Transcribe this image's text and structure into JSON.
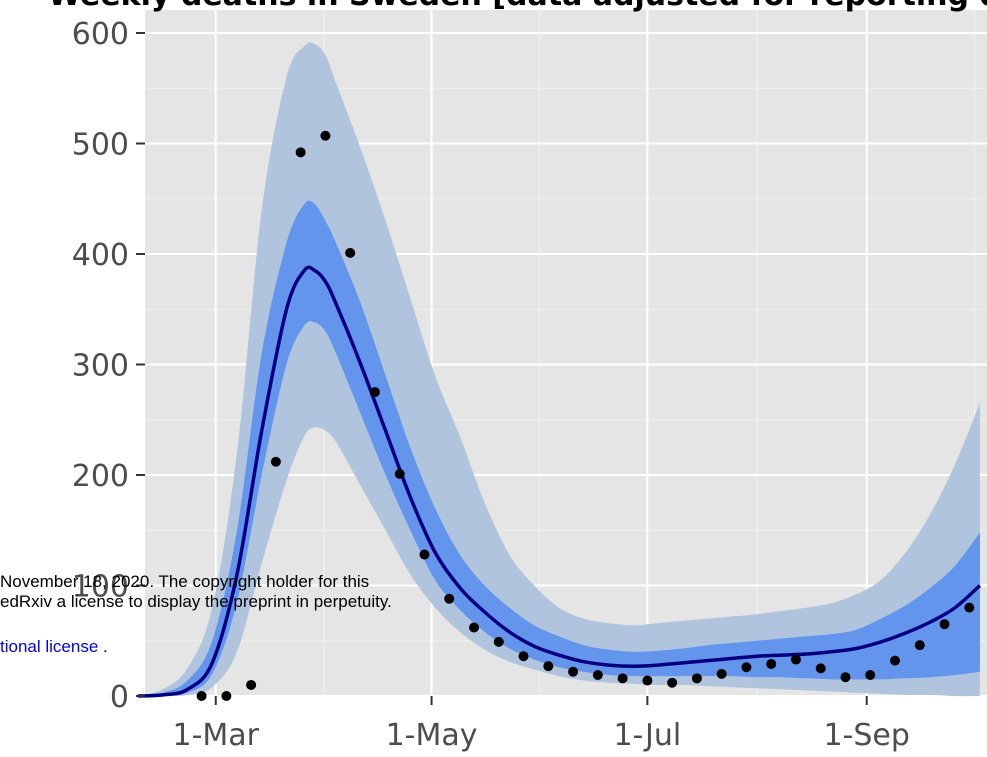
{
  "chart_data": {
    "type": "line",
    "title": "Weekly deaths in Sweden [data adjusted for reporting delay]",
    "xlabel": "",
    "ylabel": "",
    "ylim": [
      0,
      600
    ],
    "xlim": [
      "2020-02-10",
      "2020-10-05"
    ],
    "x_ticks": [
      {
        "date": "2020-03-01",
        "label": "1-Mar"
      },
      {
        "date": "2020-05-01",
        "label": "1-May"
      },
      {
        "date": "2020-07-01",
        "label": "1-Jul"
      },
      {
        "date": "2020-09-01",
        "label": "1-Sep"
      }
    ],
    "y_ticks": [
      0,
      100,
      200,
      300,
      400,
      500,
      600
    ],
    "grid": true,
    "series": [
      {
        "kind": "line",
        "color": "#000080",
        "x": [
          "2020-02-08",
          "2020-02-15",
          "2020-02-22",
          "2020-02-29",
          "2020-03-07",
          "2020-03-14",
          "2020-03-21",
          "2020-03-26",
          "2020-03-29",
          "2020-04-01",
          "2020-04-04",
          "2020-04-11",
          "2020-04-18",
          "2020-04-25",
          "2020-05-02",
          "2020-05-09",
          "2020-05-16",
          "2020-05-23",
          "2020-05-30",
          "2020-06-06",
          "2020-06-13",
          "2020-06-20",
          "2020-06-27",
          "2020-07-04",
          "2020-07-11",
          "2020-07-18",
          "2020-07-25",
          "2020-08-01",
          "2020-08-08",
          "2020-08-15",
          "2020-08-22",
          "2020-08-29",
          "2020-09-05",
          "2020-09-12",
          "2020-09-19",
          "2020-09-26",
          "2020-10-03"
        ],
        "y": [
          0,
          1,
          6,
          30,
          110,
          240,
          350,
          385,
          385,
          375,
          355,
          300,
          240,
          180,
          130,
          98,
          76,
          58,
          45,
          37,
          31,
          28,
          27,
          28,
          30,
          32,
          34,
          36,
          37,
          38,
          40,
          43,
          49,
          57,
          67,
          80,
          100
        ]
      },
      {
        "kind": "band",
        "name": "inner",
        "color": "#6495ed",
        "x": [
          "2020-02-08",
          "2020-02-15",
          "2020-02-22",
          "2020-02-29",
          "2020-03-07",
          "2020-03-14",
          "2020-03-21",
          "2020-03-26",
          "2020-03-29",
          "2020-04-01",
          "2020-04-04",
          "2020-04-11",
          "2020-04-18",
          "2020-04-25",
          "2020-05-02",
          "2020-05-09",
          "2020-05-16",
          "2020-05-23",
          "2020-05-30",
          "2020-06-06",
          "2020-06-13",
          "2020-06-20",
          "2020-06-27",
          "2020-07-04",
          "2020-07-11",
          "2020-07-18",
          "2020-07-25",
          "2020-08-01",
          "2020-08-08",
          "2020-08-15",
          "2020-08-22",
          "2020-08-29",
          "2020-09-05",
          "2020-09-12",
          "2020-09-19",
          "2020-09-26",
          "2020-10-03"
        ],
        "lower": [
          0,
          0,
          3,
          20,
          85,
          200,
          300,
          335,
          338,
          330,
          310,
          255,
          200,
          150,
          105,
          78,
          58,
          43,
          33,
          26,
          22,
          19,
          18,
          18,
          18,
          18,
          18,
          17,
          17,
          16,
          15,
          15,
          15,
          16,
          17,
          19,
          22
        ],
        "upper": [
          0,
          3,
          14,
          50,
          150,
          310,
          410,
          445,
          445,
          430,
          410,
          355,
          290,
          225,
          170,
          128,
          100,
          80,
          64,
          54,
          46,
          42,
          40,
          41,
          43,
          46,
          48,
          50,
          52,
          54,
          56,
          60,
          70,
          82,
          98,
          118,
          148
        ]
      },
      {
        "kind": "band",
        "name": "outer",
        "color": "#b0c4de",
        "x": [
          "2020-02-08",
          "2020-02-15",
          "2020-02-22",
          "2020-02-29",
          "2020-03-07",
          "2020-03-14",
          "2020-03-21",
          "2020-03-26",
          "2020-03-29",
          "2020-04-01",
          "2020-04-04",
          "2020-04-11",
          "2020-04-18",
          "2020-04-25",
          "2020-05-02",
          "2020-05-09",
          "2020-05-16",
          "2020-05-23",
          "2020-05-30",
          "2020-06-06",
          "2020-06-13",
          "2020-06-20",
          "2020-06-27",
          "2020-07-04",
          "2020-07-11",
          "2020-07-18",
          "2020-07-25",
          "2020-08-01",
          "2020-08-08",
          "2020-08-15",
          "2020-08-22",
          "2020-08-29",
          "2020-09-05",
          "2020-09-12",
          "2020-09-19",
          "2020-09-26",
          "2020-10-03"
        ],
        "lower": [
          0,
          0,
          1,
          8,
          40,
          120,
          195,
          235,
          243,
          240,
          230,
          190,
          150,
          110,
          80,
          58,
          42,
          31,
          24,
          18,
          14,
          12,
          11,
          10,
          10,
          9,
          8,
          7,
          6,
          5,
          4,
          3,
          2,
          1,
          1,
          0,
          0
        ],
        "upper": [
          0,
          6,
          25,
          80,
          220,
          440,
          560,
          588,
          590,
          580,
          555,
          495,
          430,
          360,
          290,
          235,
          175,
          128,
          100,
          80,
          70,
          66,
          64,
          66,
          68,
          70,
          72,
          74,
          77,
          80,
          84,
          92,
          105,
          130,
          165,
          210,
          265
        ]
      },
      {
        "kind": "scatter",
        "color": "#000000",
        "x": [
          "2020-02-26",
          "2020-03-04",
          "2020-03-11",
          "2020-03-18",
          "2020-03-25",
          "2020-04-01",
          "2020-04-08",
          "2020-04-15",
          "2020-04-22",
          "2020-04-29",
          "2020-05-06",
          "2020-05-13",
          "2020-05-20",
          "2020-05-27",
          "2020-06-03",
          "2020-06-10",
          "2020-06-17",
          "2020-06-24",
          "2020-07-01",
          "2020-07-08",
          "2020-07-15",
          "2020-07-22",
          "2020-07-29",
          "2020-08-05",
          "2020-08-12",
          "2020-08-19",
          "2020-08-26",
          "2020-09-02",
          "2020-09-09",
          "2020-09-16",
          "2020-09-23",
          "2020-09-30"
        ],
        "y": [
          0,
          0,
          10,
          212,
          492,
          507,
          401,
          275,
          201,
          128,
          88,
          62,
          49,
          36,
          27,
          22,
          19,
          16,
          14,
          12,
          16,
          20,
          26,
          29,
          33,
          25,
          17,
          19,
          32,
          46,
          65,
          80
        ]
      }
    ]
  },
  "overlay": {
    "line1": "November 18, 2020. The copyright holder for this",
    "line2": "edRxiv a license to display the preprint in perpetuity.",
    "line3": "tional license"
  }
}
